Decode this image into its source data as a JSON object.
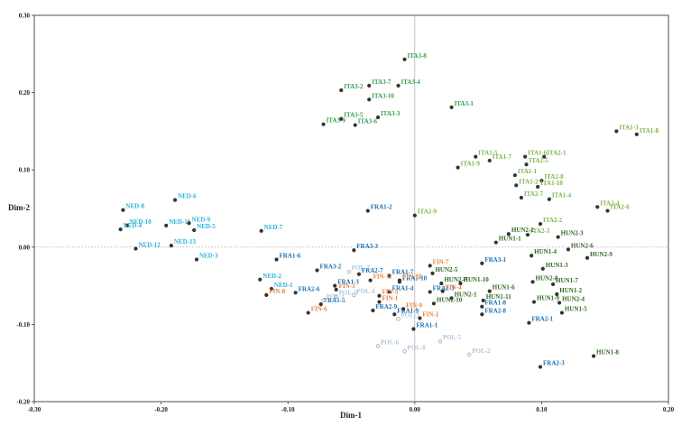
{
  "chart_data": {
    "type": "scatter",
    "title": "",
    "xlabel": "Dim-1",
    "ylabel": "Dim-2",
    "xlim": [
      -0.3,
      0.2
    ],
    "ylim": [
      -0.2,
      0.3
    ],
    "xticks": [
      "-0.30",
      "-0.20",
      "-0.10",
      "0.00",
      "0.10",
      "0.20"
    ],
    "yticks": [
      "-0.20",
      "-0.10",
      "0.00",
      "0.10",
      "0.20",
      "0.30"
    ],
    "grid": false,
    "reference_lines": [
      0,
      0
    ],
    "colors": {
      "ITA_dark": "#2e9e4a",
      "ITA_light": "#7ab64a",
      "HUN": "#2f6a1f",
      "NED": "#2ab0d8",
      "FRA": "#1c6fb0",
      "FIN": "#e8803a",
      "POL": "#a9c6e2"
    },
    "points": [
      {
        "label": "ITA3-8",
        "x": -0.008,
        "y": 0.243,
        "color": "#2e9e4a"
      },
      {
        "label": "ITA3-7",
        "x": -0.036,
        "y": 0.209,
        "color": "#2e9e4a"
      },
      {
        "label": "ITA3-4",
        "x": -0.013,
        "y": 0.209,
        "color": "#2e9e4a"
      },
      {
        "label": "ITA3-2",
        "x": -0.058,
        "y": 0.203,
        "color": "#2e9e4a"
      },
      {
        "label": "ITA3-10",
        "x": -0.036,
        "y": 0.191,
        "color": "#2e9e4a"
      },
      {
        "label": "ITA3-1",
        "x": 0.029,
        "y": 0.181,
        "color": "#2e9e4a"
      },
      {
        "label": "ITA3-5",
        "x": -0.058,
        "y": 0.166,
        "color": "#2e9e4a"
      },
      {
        "label": "ITA3-3",
        "x": -0.029,
        "y": 0.168,
        "color": "#2e9e4a"
      },
      {
        "label": "ITA3-9",
        "x": -0.072,
        "y": 0.159,
        "color": "#2e9e4a"
      },
      {
        "label": "ITA3-6",
        "x": -0.047,
        "y": 0.158,
        "color": "#2e9e4a"
      },
      {
        "label": "ITA1-3",
        "x": 0.159,
        "y": 0.15,
        "color": "#7ab64a"
      },
      {
        "label": "ITA1-8",
        "x": 0.175,
        "y": 0.146,
        "color": "#7ab64a"
      },
      {
        "label": "ITA1-5",
        "x": 0.048,
        "y": 0.117,
        "color": "#7ab64a"
      },
      {
        "label": "ITA1-6",
        "x": 0.087,
        "y": 0.117,
        "color": "#7ab64a"
      },
      {
        "label": "ITA2-1",
        "x": 0.102,
        "y": 0.117,
        "color": "#7ab64a"
      },
      {
        "label": "ITA1-7",
        "x": 0.059,
        "y": 0.112,
        "color": "#7ab64a"
      },
      {
        "label": "ITA2-5",
        "x": 0.088,
        "y": 0.107,
        "color": "#7ab64a"
      },
      {
        "label": "ITA1-9",
        "x": 0.034,
        "y": 0.103,
        "color": "#7ab64a"
      },
      {
        "label": "ITA1-1",
        "x": 0.079,
        "y": 0.093,
        "color": "#7ab64a"
      },
      {
        "label": "ITA2-8",
        "x": 0.1,
        "y": 0.086,
        "color": "#7ab64a"
      },
      {
        "label": "ITA1-2",
        "x": 0.08,
        "y": 0.08,
        "color": "#7ab64a"
      },
      {
        "label": "ITA1-10",
        "x": 0.097,
        "y": 0.078,
        "color": "#7ab64a"
      },
      {
        "label": "ITA2-7",
        "x": 0.084,
        "y": 0.064,
        "color": "#7ab64a"
      },
      {
        "label": "ITA1-4",
        "x": 0.106,
        "y": 0.062,
        "color": "#7ab64a"
      },
      {
        "label": "ITA2-4",
        "x": 0.144,
        "y": 0.052,
        "color": "#7ab64a"
      },
      {
        "label": "ITA2-6",
        "x": 0.152,
        "y": 0.047,
        "color": "#7ab64a"
      },
      {
        "label": "ITA2-9",
        "x": 0.0,
        "y": 0.041,
        "color": "#7ab64a"
      },
      {
        "label": "ITA2-2",
        "x": 0.099,
        "y": 0.03,
        "color": "#7ab64a"
      },
      {
        "label": "ITA2-3",
        "x": 0.089,
        "y": 0.016,
        "color": "#7ab64a"
      },
      {
        "label": "HUN2-2",
        "x": 0.074,
        "y": 0.017,
        "color": "#2f6a1f"
      },
      {
        "label": "HUN2-3",
        "x": 0.113,
        "y": 0.013,
        "color": "#2f6a1f"
      },
      {
        "label": "HUN1-1",
        "x": 0.064,
        "y": 0.006,
        "color": "#2f6a1f"
      },
      {
        "label": "HUN2-6",
        "x": 0.121,
        "y": -0.003,
        "color": "#2f6a1f"
      },
      {
        "label": "HUN1-4",
        "x": 0.092,
        "y": -0.011,
        "color": "#2f6a1f"
      },
      {
        "label": "HUN2-9",
        "x": 0.136,
        "y": -0.014,
        "color": "#2f6a1f"
      },
      {
        "label": "HUN2-5",
        "x": 0.014,
        "y": -0.034,
        "color": "#2f6a1f"
      },
      {
        "label": "HUN1-3",
        "x": 0.101,
        "y": -0.028,
        "color": "#2f6a1f"
      },
      {
        "label": "HUN2-7",
        "x": 0.021,
        "y": -0.047,
        "color": "#2f6a1f"
      },
      {
        "label": "HUN1-10",
        "x": 0.036,
        "y": -0.047,
        "color": "#2f6a1f"
      },
      {
        "label": "HUN2-8",
        "x": 0.093,
        "y": -0.045,
        "color": "#2f6a1f"
      },
      {
        "label": "HUN1-7",
        "x": 0.109,
        "y": -0.048,
        "color": "#2f6a1f"
      },
      {
        "label": "HUN1-6",
        "x": 0.059,
        "y": -0.057,
        "color": "#2f6a1f"
      },
      {
        "label": "HUN1-2",
        "x": 0.112,
        "y": -0.061,
        "color": "#2f6a1f"
      },
      {
        "label": "HUN2-1",
        "x": 0.029,
        "y": -0.066,
        "color": "#2f6a1f"
      },
      {
        "label": "HUN1-11",
        "x": 0.054,
        "y": -0.069,
        "color": "#2f6a1f"
      },
      {
        "label": "HUN2-10",
        "x": 0.015,
        "y": -0.073,
        "color": "#2f6a1f"
      },
      {
        "label": "HUN1-9",
        "x": 0.094,
        "y": -0.071,
        "color": "#2f6a1f"
      },
      {
        "label": "HUN2-4",
        "x": 0.114,
        "y": -0.072,
        "color": "#2f6a1f"
      },
      {
        "label": "HUN1-5",
        "x": 0.116,
        "y": -0.085,
        "color": "#2f6a1f"
      },
      {
        "label": "HUN1-8",
        "x": 0.141,
        "y": -0.141,
        "color": "#2f6a1f"
      },
      {
        "label": "NED-8",
        "x": -0.23,
        "y": 0.048,
        "color": "#2ab0d8"
      },
      {
        "label": "NED-6",
        "x": -0.189,
        "y": 0.061,
        "color": "#2ab0d8"
      },
      {
        "label": "NED-10",
        "x": -0.227,
        "y": 0.028,
        "color": "#2ab0d8"
      },
      {
        "label": "NED-11",
        "x": -0.196,
        "y": 0.028,
        "color": "#2ab0d8"
      },
      {
        "label": "NED-9",
        "x": -0.178,
        "y": 0.031,
        "color": "#2ab0d8"
      },
      {
        "label": "NED-5",
        "x": -0.174,
        "y": 0.022,
        "color": "#2ab0d8"
      },
      {
        "label": "NED-4",
        "x": -0.232,
        "y": 0.023,
        "color": "#2ab0d8"
      },
      {
        "label": "NED-7",
        "x": -0.121,
        "y": 0.021,
        "color": "#2ab0d8"
      },
      {
        "label": "NED-12",
        "x": -0.22,
        "y": -0.002,
        "color": "#2ab0d8"
      },
      {
        "label": "NED-13",
        "x": -0.192,
        "y": 0.002,
        "color": "#2ab0d8"
      },
      {
        "label": "NED-3",
        "x": -0.172,
        "y": -0.016,
        "color": "#2ab0d8"
      },
      {
        "label": "NED-2",
        "x": -0.122,
        "y": -0.042,
        "color": "#2ab0d8"
      },
      {
        "label": "NED-1",
        "x": -0.113,
        "y": -0.054,
        "color": "#2ab0d8"
      },
      {
        "label": "FRA1-2",
        "x": -0.037,
        "y": 0.047,
        "color": "#1c6fb0"
      },
      {
        "label": "FRA1-6",
        "x": -0.109,
        "y": -0.016,
        "color": "#1c6fb0"
      },
      {
        "label": "FRA3-3",
        "x": -0.048,
        "y": -0.004,
        "color": "#1c6fb0"
      },
      {
        "label": "FRA3-1",
        "x": 0.053,
        "y": -0.021,
        "color": "#1c6fb0"
      },
      {
        "label": "FRA3-2",
        "x": -0.077,
        "y": -0.03,
        "color": "#1c6fb0"
      },
      {
        "label": "FRA2-7",
        "x": -0.044,
        "y": -0.035,
        "color": "#1c6fb0"
      },
      {
        "label": "FRA1-7",
        "x": -0.02,
        "y": -0.037,
        "color": "#1c6fb0"
      },
      {
        "label": "FRA1-10",
        "x": -0.012,
        "y": -0.045,
        "color": "#1c6fb0"
      },
      {
        "label": "FRA1-3",
        "x": -0.063,
        "y": -0.05,
        "color": "#1c6fb0"
      },
      {
        "label": "FRA2-6",
        "x": -0.094,
        "y": -0.059,
        "color": "#1c6fb0"
      },
      {
        "label": "FRA1-4",
        "x": -0.02,
        "y": -0.058,
        "color": "#1c6fb0"
      },
      {
        "label": "FRA2-3",
        "x": 0.012,
        "y": -0.058,
        "color": "#1c6fb0"
      },
      {
        "label": "FRA1-5",
        "x": -0.074,
        "y": -0.074,
        "color": "#1c6fb0"
      },
      {
        "label": "FRA1-8",
        "x": 0.053,
        "y": -0.077,
        "color": "#1c6fb0"
      },
      {
        "label": "FRA2-9",
        "x": -0.033,
        "y": -0.082,
        "color": "#1c6fb0"
      },
      {
        "label": "FRA1-9",
        "x": -0.016,
        "y": -0.087,
        "color": "#1c6fb0"
      },
      {
        "label": "FRA2-8",
        "x": 0.053,
        "y": -0.087,
        "color": "#1c6fb0"
      },
      {
        "label": "FRA2-1",
        "x": 0.09,
        "y": -0.098,
        "color": "#1c6fb0"
      },
      {
        "label": "FRA1-1",
        "x": -0.001,
        "y": -0.106,
        "color": "#1c6fb0"
      },
      {
        "label": "FRA2-3",
        "x": 0.099,
        "y": -0.155,
        "color": "#1c6fb0"
      },
      {
        "label": "FIN-7",
        "x": 0.012,
        "y": -0.024,
        "color": "#e8803a"
      },
      {
        "label": "FIN-11",
        "x": -0.035,
        "y": -0.043,
        "color": "#e8803a"
      },
      {
        "label": "FIN-10",
        "x": -0.012,
        "y": -0.043,
        "color": "#e8803a"
      },
      {
        "label": "FIN-3",
        "x": -0.062,
        "y": -0.055,
        "color": "#e8803a"
      },
      {
        "label": "FIN-4",
        "x": 0.022,
        "y": -0.057,
        "color": "#e8803a"
      },
      {
        "label": "FIN-5",
        "x": -0.028,
        "y": -0.063,
        "color": "#e8803a"
      },
      {
        "label": "FIN-8",
        "x": -0.117,
        "y": -0.062,
        "color": "#e8803a"
      },
      {
        "label": "FIN-1",
        "x": -0.028,
        "y": -0.071,
        "color": "#e8803a"
      },
      {
        "label": "FIN-9",
        "x": -0.009,
        "y": -0.08,
        "color": "#e8803a"
      },
      {
        "label": "FIN-6",
        "x": -0.084,
        "y": -0.085,
        "color": "#e8803a"
      },
      {
        "label": "FIN-2",
        "x": 0.004,
        "y": -0.092,
        "color": "#e8803a"
      },
      {
        "label": "POL-7",
        "x": -0.052,
        "y": -0.032,
        "color": "#a9c6e2"
      },
      {
        "label": "POL-4",
        "x": -0.048,
        "y": -0.062,
        "color": "#a9c6e2"
      },
      {
        "label": "POL-3",
        "x": -0.062,
        "y": -0.064,
        "color": "#a9c6e2"
      },
      {
        "label": "POL-1",
        "x": -0.072,
        "y": -0.069,
        "color": "#a9c6e2"
      },
      {
        "label": "POL-3",
        "x": -0.013,
        "y": -0.093,
        "color": "#a9c6e2"
      },
      {
        "label": "POL-5",
        "x": 0.02,
        "y": -0.122,
        "color": "#a9c6e2"
      },
      {
        "label": "POL-6",
        "x": -0.029,
        "y": -0.128,
        "color": "#a9c6e2"
      },
      {
        "label": "POL-8",
        "x": -0.008,
        "y": -0.135,
        "color": "#a9c6e2"
      },
      {
        "label": "POL-2",
        "x": 0.043,
        "y": -0.139,
        "color": "#a9c6e2"
      }
    ]
  }
}
